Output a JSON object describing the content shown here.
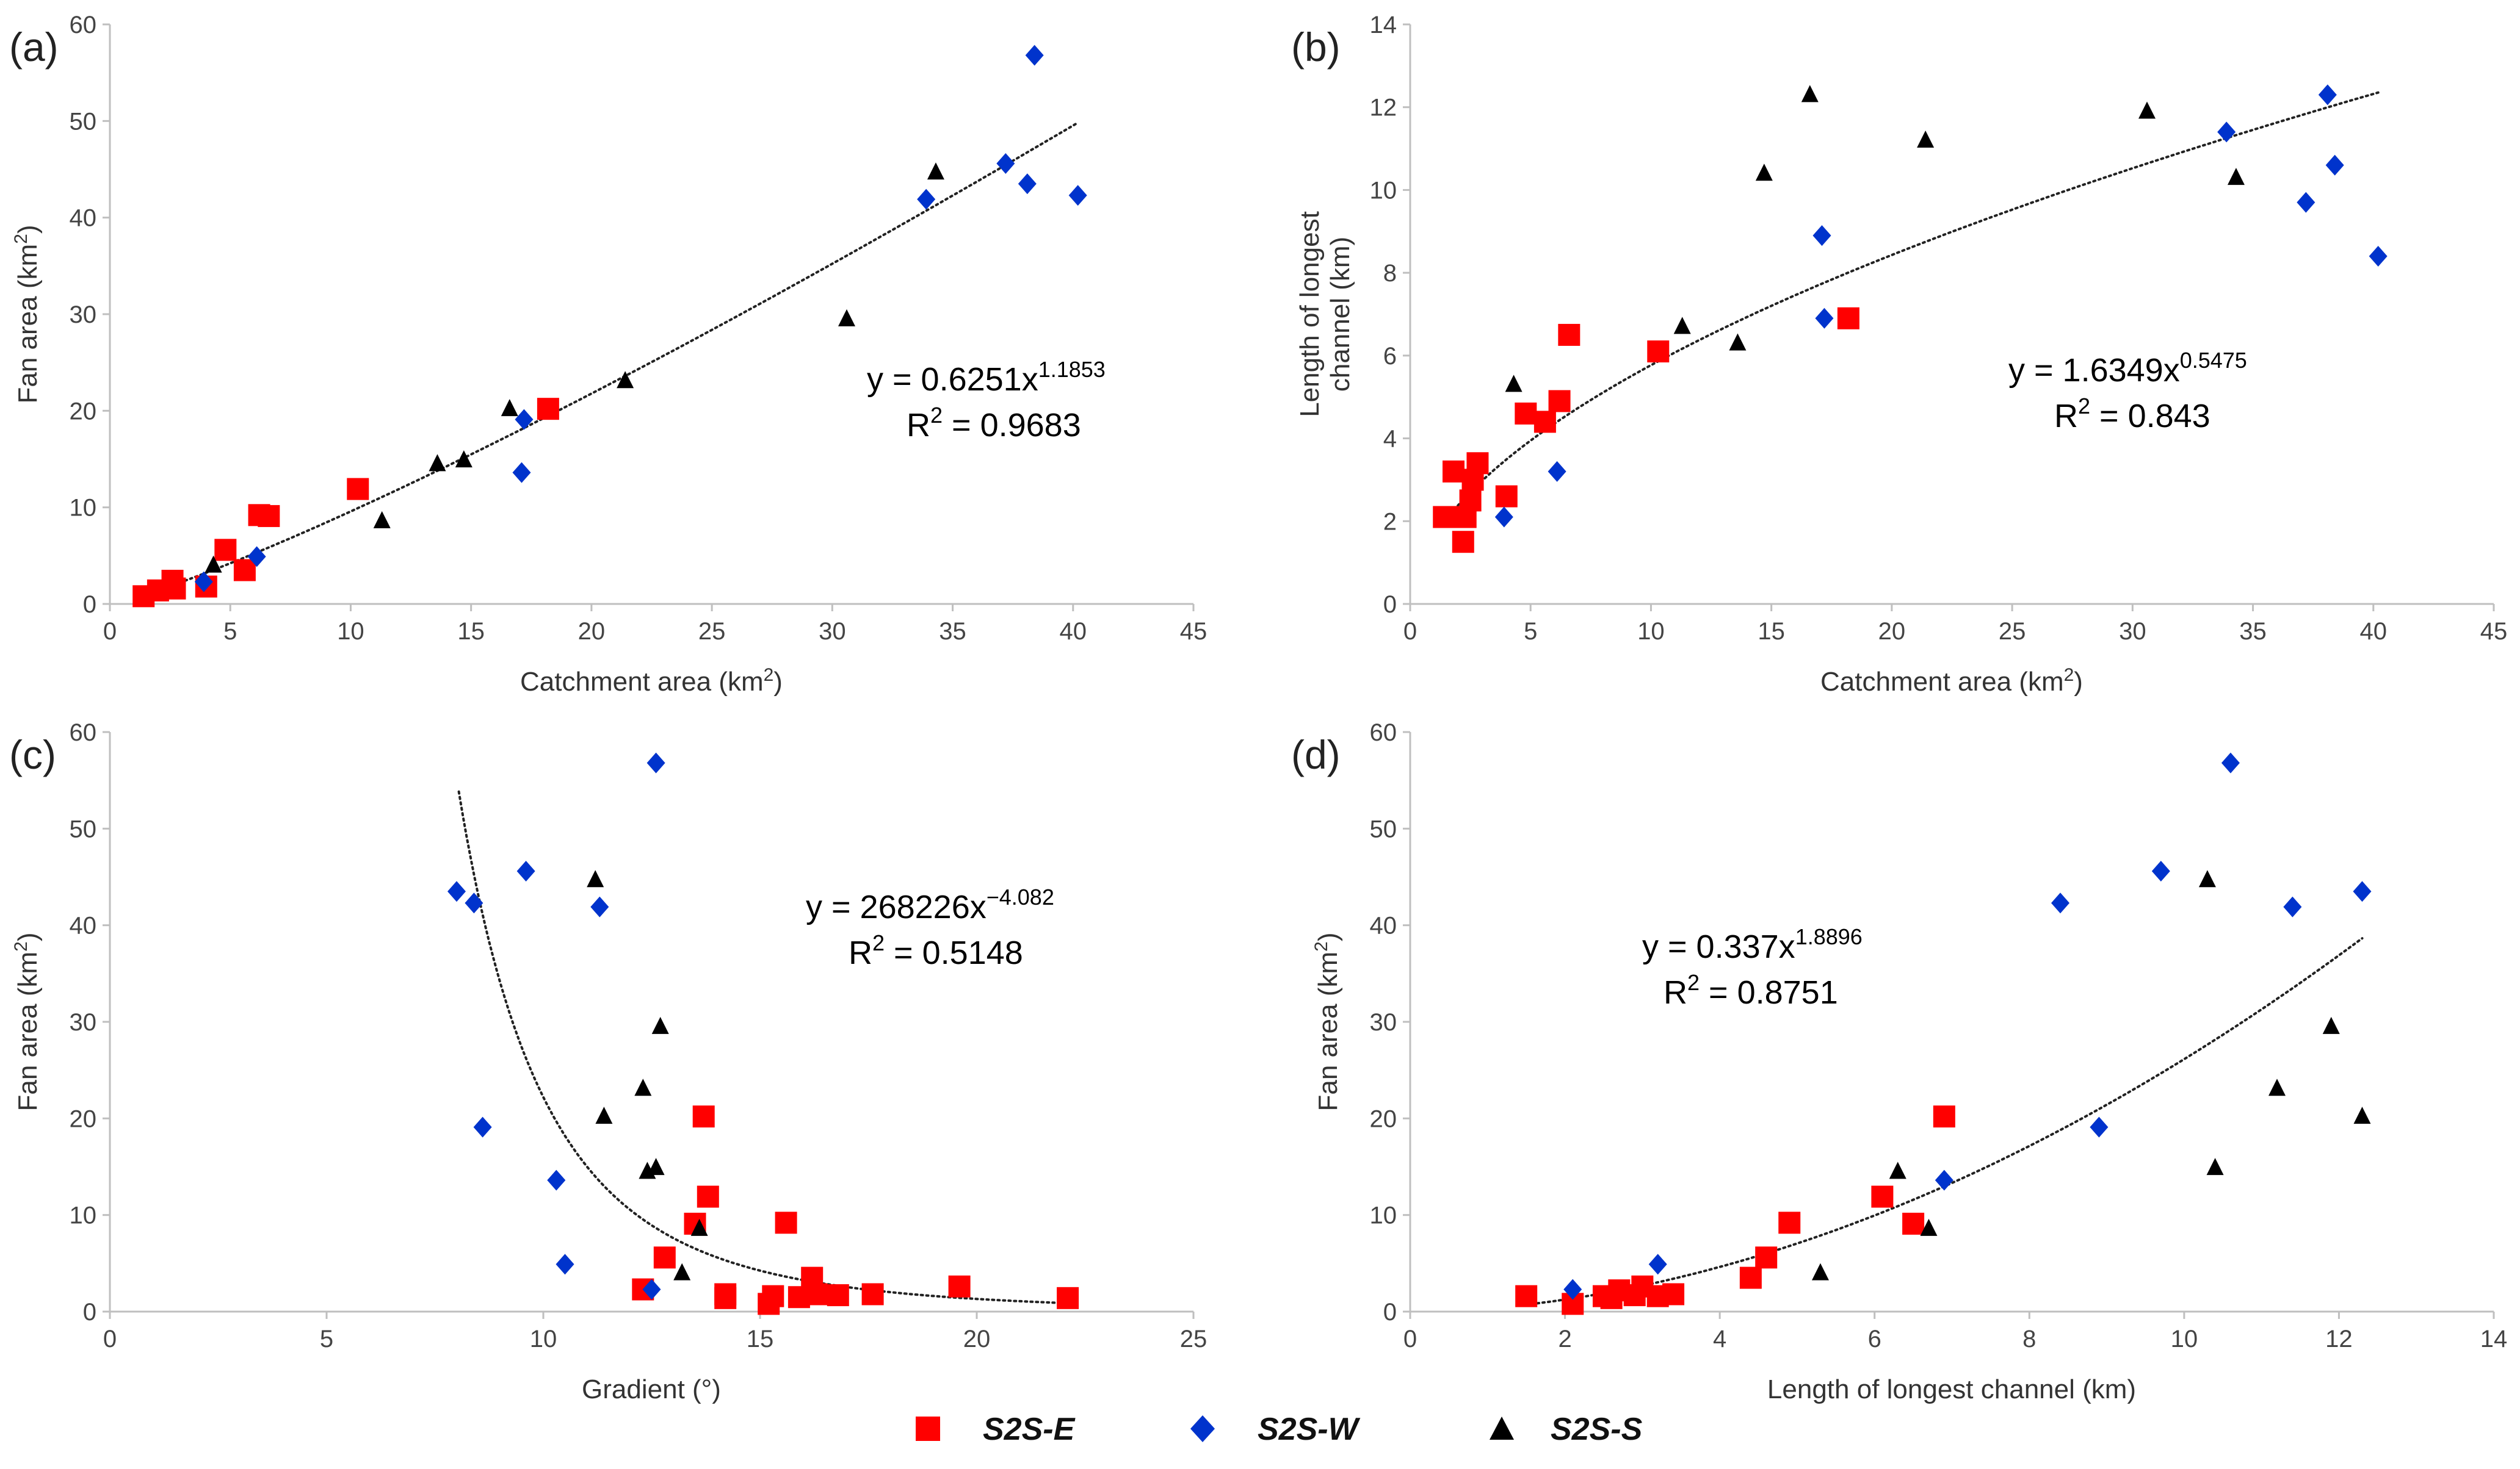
{
  "legend": [
    {
      "name": "S2S-E",
      "marker": "square",
      "color": "#ff0000"
    },
    {
      "name": "S2S-W",
      "marker": "diamond",
      "color": "#0033cc"
    },
    {
      "name": "S2S-S",
      "marker": "triangle",
      "color": "#000000"
    }
  ],
  "chart_data": [
    {
      "panel": "(a)",
      "type": "scatter",
      "xlabel": "Catchment area (km",
      "xlabel_sup": "2",
      "xlabel_end": ")",
      "ylabel": "Fan area (km",
      "ylabel_sup": "2",
      "ylabel_end": ")",
      "xlim": [
        0,
        45
      ],
      "ylim": [
        0,
        60
      ],
      "xticks": [
        0,
        5,
        10,
        15,
        20,
        25,
        30,
        35,
        40,
        45
      ],
      "yticks": [
        0,
        10,
        20,
        30,
        40,
        50,
        60
      ],
      "trendline": {
        "form": "power",
        "a": 0.6251,
        "b": 1.1853,
        "xrange": [
          1.4,
          40.2
        ]
      },
      "equation": {
        "text": "y = 0.6251x",
        "sup": "1.1853",
        "r2_prefix": "R",
        "r2_sup": "2",
        "r2_text": " = 0.9683"
      },
      "series": [
        {
          "name": "S2S-E",
          "points": [
            [
              1.4,
              0.8
            ],
            [
              2.0,
              1.4
            ],
            [
              2.6,
              2.4
            ],
            [
              2.7,
              1.6
            ],
            [
              4.0,
              1.8
            ],
            [
              4.8,
              5.6
            ],
            [
              5.6,
              3.5
            ],
            [
              6.2,
              9.2
            ],
            [
              6.6,
              9.1
            ],
            [
              10.3,
              11.9
            ],
            [
              18.2,
              20.2
            ]
          ]
        },
        {
          "name": "S2S-W",
          "points": [
            [
              3.9,
              2.3
            ],
            [
              6.1,
              4.9
            ],
            [
              17.1,
              13.6
            ],
            [
              17.2,
              19.1
            ],
            [
              33.9,
              41.9
            ],
            [
              37.2,
              45.6
            ],
            [
              38.1,
              43.5
            ],
            [
              38.4,
              56.8
            ],
            [
              40.2,
              42.3
            ]
          ]
        },
        {
          "name": "S2S-S",
          "points": [
            [
              4.3,
              4.0
            ],
            [
              11.3,
              8.6
            ],
            [
              13.6,
              14.5
            ],
            [
              14.7,
              14.9
            ],
            [
              16.6,
              20.2
            ],
            [
              21.4,
              23.1
            ],
            [
              30.6,
              29.5
            ],
            [
              34.3,
              44.7
            ]
          ]
        }
      ]
    },
    {
      "panel": "(b)",
      "type": "scatter",
      "xlabel": "Catchment area (km",
      "xlabel_sup": "2",
      "xlabel_end": ")",
      "ylabel_line1": "Length of longest",
      "ylabel_line2": "channel (km)",
      "xlim": [
        0,
        45
      ],
      "ylim": [
        0,
        14
      ],
      "xticks": [
        0,
        5,
        10,
        15,
        20,
        25,
        30,
        35,
        40,
        45
      ],
      "yticks": [
        0,
        2,
        4,
        6,
        8,
        10,
        12,
        14
      ],
      "trendline": {
        "form": "power",
        "a": 1.6349,
        "b": 0.5475,
        "xrange": [
          1.4,
          40.2
        ]
      },
      "equation": {
        "text": "y = 1.6349x",
        "sup": "0.5475",
        "r2_prefix": "R",
        "r2_sup": "2",
        "r2_text": " = 0.843"
      },
      "series": [
        {
          "name": "S2S-E",
          "points": [
            [
              1.4,
              2.1
            ],
            [
              1.8,
              3.2
            ],
            [
              2.2,
              1.5
            ],
            [
              2.3,
              2.1
            ],
            [
              2.5,
              2.5
            ],
            [
              2.6,
              3.0
            ],
            [
              2.8,
              3.4
            ],
            [
              4.0,
              2.6
            ],
            [
              4.8,
              4.6
            ],
            [
              5.6,
              4.4
            ],
            [
              6.2,
              4.9
            ],
            [
              6.6,
              6.5
            ],
            [
              10.3,
              6.1
            ],
            [
              18.2,
              6.9
            ]
          ]
        },
        {
          "name": "S2S-W",
          "points": [
            [
              3.9,
              2.1
            ],
            [
              6.1,
              3.2
            ],
            [
              17.1,
              8.9
            ],
            [
              17.2,
              6.9
            ],
            [
              33.9,
              11.4
            ],
            [
              37.2,
              9.7
            ],
            [
              38.1,
              12.3
            ],
            [
              38.4,
              10.6
            ],
            [
              40.2,
              8.4
            ]
          ]
        },
        {
          "name": "S2S-S",
          "points": [
            [
              4.3,
              5.3
            ],
            [
              11.3,
              6.7
            ],
            [
              13.6,
              6.3
            ],
            [
              14.7,
              10.4
            ],
            [
              16.6,
              12.3
            ],
            [
              21.4,
              11.2
            ],
            [
              30.6,
              11.9
            ],
            [
              34.3,
              10.3
            ]
          ]
        }
      ]
    },
    {
      "panel": "(c)",
      "type": "scatter",
      "xlabel": "Gradient (°)",
      "ylabel": "Fan area (km",
      "ylabel_sup": "2",
      "ylabel_end": ")",
      "xlim": [
        0,
        25
      ],
      "ylim": [
        0,
        60
      ],
      "xticks": [
        0,
        5,
        10,
        15,
        20,
        25
      ],
      "yticks": [
        0,
        10,
        20,
        30,
        40,
        50,
        60
      ],
      "trendline": {
        "form": "power",
        "a": 268226,
        "b": -4.082,
        "xrange": [
          8.05,
          22.1
        ]
      },
      "equation": {
        "text": "y = 268226x",
        "sup": "−4.082",
        "r2_prefix": "R",
        "r2_sup": "2",
        "r2_text": " = 0.5148"
      },
      "series": [
        {
          "name": "S2S-E",
          "points": [
            [
              12.3,
              2.3
            ],
            [
              12.8,
              5.6
            ],
            [
              13.5,
              9.1
            ],
            [
              13.7,
              20.2
            ],
            [
              13.8,
              11.9
            ],
            [
              14.2,
              1.8
            ],
            [
              14.2,
              1.4
            ],
            [
              15.2,
              0.8
            ],
            [
              15.3,
              1.6
            ],
            [
              15.6,
              9.2
            ],
            [
              15.9,
              1.5
            ],
            [
              16.2,
              3.5
            ],
            [
              16.3,
              1.8
            ],
            [
              16.8,
              1.7
            ],
            [
              17.6,
              1.8
            ],
            [
              19.6,
              2.6
            ],
            [
              22.1,
              1.4
            ]
          ]
        },
        {
          "name": "S2S-W",
          "points": [
            [
              8.0,
              43.5
            ],
            [
              8.4,
              42.3
            ],
            [
              8.6,
              19.1
            ],
            [
              9.6,
              45.6
            ],
            [
              10.3,
              13.6
            ],
            [
              10.5,
              4.9
            ],
            [
              11.3,
              41.9
            ],
            [
              12.5,
              2.3
            ],
            [
              12.6,
              56.8
            ]
          ]
        },
        {
          "name": "S2S-S",
          "points": [
            [
              11.2,
              44.7
            ],
            [
              11.4,
              20.2
            ],
            [
              12.3,
              23.1
            ],
            [
              12.4,
              14.5
            ],
            [
              12.6,
              14.9
            ],
            [
              12.7,
              29.5
            ],
            [
              13.2,
              4.0
            ],
            [
              13.6,
              8.6
            ]
          ]
        }
      ]
    },
    {
      "panel": "(d)",
      "type": "scatter",
      "xlabel": "Length of longest channel (km)",
      "ylabel": "Fan area (km",
      "ylabel_sup": "2",
      "ylabel_end": ")",
      "xlim": [
        0,
        14
      ],
      "ylim": [
        0,
        60
      ],
      "xticks": [
        0,
        2,
        4,
        6,
        8,
        10,
        12,
        14
      ],
      "yticks": [
        0,
        10,
        20,
        30,
        40,
        50,
        60
      ],
      "trendline": {
        "form": "power",
        "a": 0.337,
        "b": 1.8896,
        "xrange": [
          1.5,
          12.3
        ]
      },
      "equation": {
        "text": "y = 0.337x",
        "sup": "1.8896",
        "r2_prefix": "R",
        "r2_sup": "2",
        "r2_text": " = 0.8751"
      },
      "series": [
        {
          "name": "S2S-E",
          "points": [
            [
              1.5,
              1.6
            ],
            [
              2.1,
              0.8
            ],
            [
              2.5,
              1.6
            ],
            [
              2.6,
              1.4
            ],
            [
              2.7,
              2.2
            ],
            [
              2.9,
              1.7
            ],
            [
              3.0,
              2.6
            ],
            [
              3.2,
              1.6
            ],
            [
              3.4,
              1.8
            ],
            [
              4.4,
              3.5
            ],
            [
              4.6,
              5.6
            ],
            [
              4.9,
              9.2
            ],
            [
              6.1,
              11.9
            ],
            [
              6.5,
              9.1
            ],
            [
              6.9,
              20.2
            ]
          ]
        },
        {
          "name": "S2S-W",
          "points": [
            [
              2.1,
              2.3
            ],
            [
              3.2,
              4.9
            ],
            [
              6.9,
              13.6
            ],
            [
              8.4,
              42.3
            ],
            [
              8.9,
              19.1
            ],
            [
              9.7,
              45.6
            ],
            [
              10.6,
              56.8
            ],
            [
              11.4,
              41.9
            ],
            [
              12.3,
              43.5
            ]
          ]
        },
        {
          "name": "S2S-S",
          "points": [
            [
              5.3,
              4.0
            ],
            [
              6.3,
              14.5
            ],
            [
              6.7,
              8.6
            ],
            [
              10.3,
              44.7
            ],
            [
              10.4,
              14.9
            ],
            [
              11.2,
              23.1
            ],
            [
              11.9,
              29.5
            ],
            [
              12.3,
              20.2
            ]
          ]
        }
      ]
    }
  ]
}
